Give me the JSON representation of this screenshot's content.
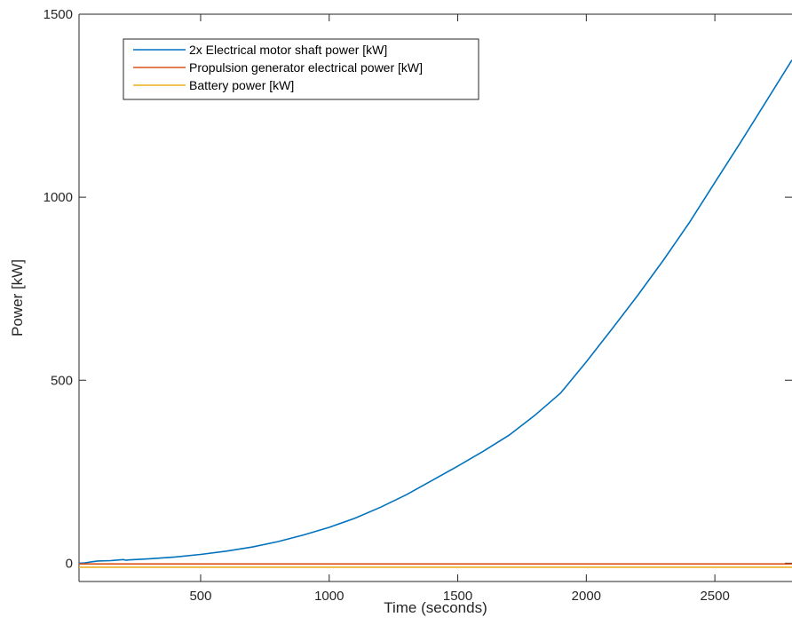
{
  "chart_data": {
    "type": "line",
    "title": "",
    "xlabel": "Time (seconds)",
    "ylabel": "Power [kW]",
    "xlim": [
      27,
      2800
    ],
    "ylim": [
      -50,
      1500
    ],
    "xticks": [
      500,
      1000,
      1500,
      2000,
      2500
    ],
    "yticks": [
      0,
      500,
      1000,
      1500
    ],
    "xtick_labels": [
      "500",
      "1000",
      "1500",
      "2000",
      "2500"
    ],
    "ytick_labels": [
      "0",
      "500",
      "1000",
      "1500"
    ],
    "grid": false,
    "legend_position": "top-left",
    "series": [
      {
        "name": "2x Electrical motor shaft power [kW]",
        "color": "#0072BD",
        "x": [
          27,
          50,
          80,
          100,
          150,
          200,
          210,
          220,
          300,
          400,
          500,
          600,
          700,
          800,
          900,
          1000,
          1100,
          1200,
          1300,
          1400,
          1500,
          1600,
          1700,
          1800,
          1900,
          2000,
          2100,
          2200,
          2300,
          2400,
          2500,
          2600,
          2700,
          2800
        ],
        "y": [
          0,
          1,
          4,
          6,
          7,
          10,
          8,
          9,
          12,
          17,
          24,
          33,
          44,
          59,
          77,
          98,
          123,
          153,
          187,
          226,
          265,
          306,
          350,
          404,
          465,
          550,
          640,
          732,
          828,
          930,
          1040,
          1150,
          1262,
          1375
        ]
      },
      {
        "name": "Propulsion generator electrical power [kW]",
        "color": "#D95319",
        "x": [
          27,
          2800
        ],
        "y": [
          -2,
          -2
        ]
      },
      {
        "name": "Battery power [kW]",
        "color": "#EDB120",
        "x": [
          27,
          2800
        ],
        "y": [
          -11,
          -11
        ]
      }
    ]
  }
}
